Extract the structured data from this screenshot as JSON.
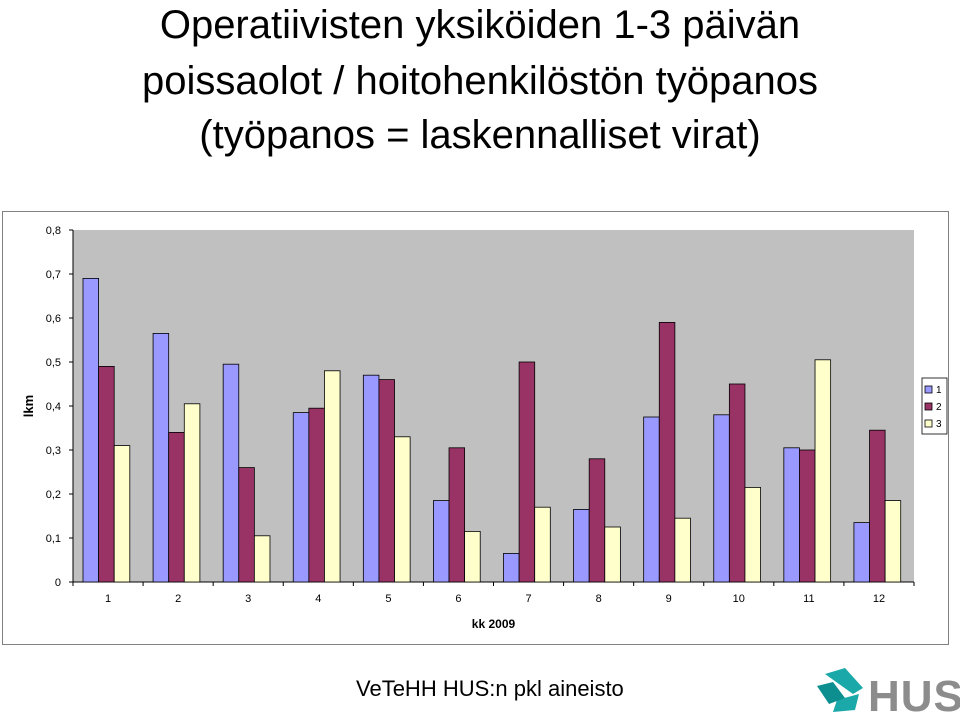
{
  "title": {
    "line1": "Operatiivisten yksiköiden 1-3 päivän",
    "line2": "poissaolot / hoitohenkilöstön työpanos",
    "line3": "(työpanos = laskennalliset virat)"
  },
  "chart_data": {
    "type": "bar",
    "xlabel": "kk 2009",
    "ylabel": "lkm",
    "ylim": [
      0,
      0.8
    ],
    "yticks": [
      "0",
      "0,1",
      "0,2",
      "0,3",
      "0,4",
      "0,5",
      "0,6",
      "0,7",
      "0,8"
    ],
    "categories": [
      "1",
      "2",
      "3",
      "4",
      "5",
      "6",
      "7",
      "8",
      "9",
      "10",
      "11",
      "12"
    ],
    "grid": false,
    "legend_position": "right",
    "series": [
      {
        "name": "1",
        "color": "#9999ff",
        "values": [
          0.69,
          0.565,
          0.495,
          0.385,
          0.47,
          0.185,
          0.065,
          0.165,
          0.375,
          0.38,
          0.305,
          0.135
        ]
      },
      {
        "name": "2",
        "color": "#993366",
        "values": [
          0.49,
          0.34,
          0.26,
          0.395,
          0.46,
          0.305,
          0.5,
          0.28,
          0.59,
          0.45,
          0.3,
          0.345
        ]
      },
      {
        "name": "3",
        "color": "#ffffcc",
        "values": [
          0.31,
          0.405,
          0.105,
          0.48,
          0.33,
          0.115,
          0.17,
          0.125,
          0.145,
          0.215,
          0.505,
          0.185
        ]
      }
    ]
  },
  "footer": {
    "source": "VeTeHH HUS:n pkl aineisto"
  },
  "logo": {
    "text": "HUS",
    "color": "#00a6a6"
  }
}
